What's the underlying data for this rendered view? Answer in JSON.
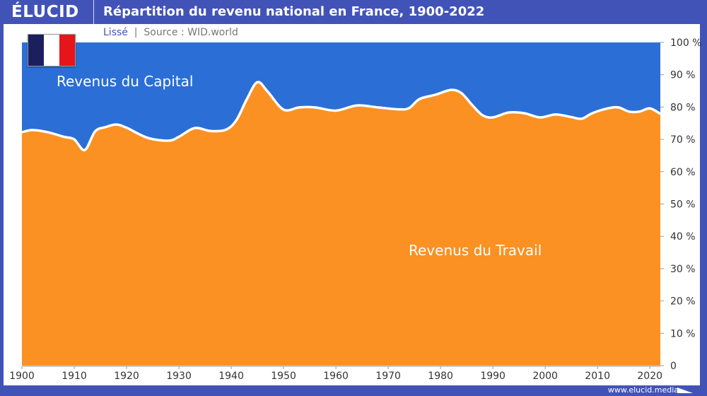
{
  "header": {
    "logo": "ÉLUCID",
    "title": "Répartition du revenu national en France, 1900-2022"
  },
  "subtitle": {
    "smoothing": "Lissé",
    "separator": "|",
    "source": "Source : WID.world"
  },
  "footer": {
    "url": "www.elucid.media"
  },
  "flag_colors": [
    "#1b1f5e",
    "#ffffff",
    "#e8141b"
  ],
  "chart_data": {
    "type": "area",
    "title": "Répartition du revenu national en France, 1900-2022",
    "stacked": true,
    "xlim": [
      1900,
      2022
    ],
    "ylim": [
      0,
      100
    ],
    "x_ticks": [
      1900,
      1910,
      1920,
      1930,
      1940,
      1950,
      1960,
      1970,
      1980,
      1990,
      2000,
      2010,
      2020
    ],
    "y_ticks": [
      0,
      10,
      20,
      30,
      40,
      50,
      60,
      70,
      80,
      90,
      100
    ],
    "y_tick_labels": [
      "0",
      "10 %",
      "20 %",
      "30 %",
      "40 %",
      "50 %",
      "60 %",
      "70 %",
      "80 %",
      "90 %",
      "100 %"
    ],
    "y_axis_position": "right",
    "grid": false,
    "series": [
      {
        "name": "Revenus du Travail",
        "color": "#fb9122",
        "x": [
          1900,
          1902,
          1905,
          1908,
          1910,
          1912,
          1914,
          1916,
          1918,
          1920,
          1924,
          1928,
          1930,
          1933,
          1936,
          1939,
          1941,
          1943,
          1945,
          1947,
          1950,
          1953,
          1956,
          1960,
          1964,
          1968,
          1972,
          1974,
          1976,
          1979,
          1982,
          1984,
          1986,
          1988,
          1990,
          1993,
          1996,
          1999,
          2002,
          2005,
          2007,
          2009,
          2012,
          2014,
          2016,
          2018,
          2020,
          2022
        ],
        "values": [
          72.2,
          72.9,
          72.2,
          70.8,
          70.0,
          66.7,
          72.5,
          73.8,
          74.6,
          73.6,
          70.5,
          69.6,
          70.8,
          73.5,
          72.6,
          73.0,
          76.0,
          82.5,
          87.7,
          84.7,
          79.2,
          79.9,
          79.9,
          78.9,
          80.5,
          79.9,
          79.3,
          79.7,
          82.5,
          83.8,
          85.3,
          84.3,
          80.7,
          77.5,
          76.8,
          78.3,
          78.1,
          76.8,
          77.7,
          76.9,
          76.4,
          78.1,
          79.6,
          79.9,
          78.6,
          78.6,
          79.6,
          77.9
        ]
      },
      {
        "name": "Revenus du Capital",
        "color": "#2b6fd6",
        "note_fill": "remainder to 100 %"
      }
    ]
  }
}
